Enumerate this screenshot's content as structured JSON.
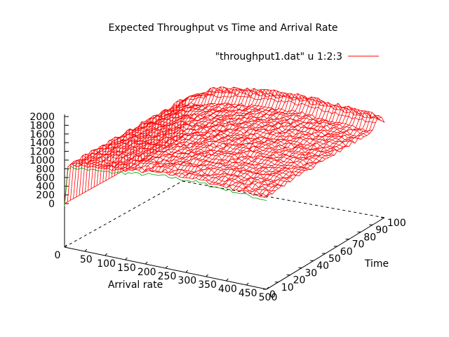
{
  "chart_data": {
    "type": "surface",
    "title": "Expected Throughput vs Time and Arrival Rate",
    "legend": {
      "label": "\"throughput1.dat\" u 1:2:3",
      "position": "top-right",
      "color": "#ff0000"
    },
    "xlabel": "Arrival rate",
    "ylabel": "Time",
    "zlabel": "",
    "xlim": [
      0,
      500
    ],
    "ylim": [
      0,
      100
    ],
    "zlim": [
      0,
      2000
    ],
    "xticks": [
      "0",
      "50",
      "100",
      "150",
      "200",
      "250",
      "300",
      "350",
      "400",
      "450",
      "500"
    ],
    "yticks": [
      "0",
      "10",
      "20",
      "30",
      "40",
      "50",
      "60",
      "70",
      "80",
      "90",
      "100"
    ],
    "zticks": [
      "0",
      "200",
      "400",
      "600",
      "800",
      "1000",
      "1200",
      "1400",
      "1600",
      "1800",
      "2000"
    ],
    "grid": false,
    "surface_colors": {
      "top": "#ff0000",
      "bottom": "#00a000"
    },
    "profile": {
      "x": [
        0,
        5,
        10,
        25,
        50,
        75,
        100,
        125,
        150,
        175,
        200,
        225,
        250,
        275,
        300,
        325,
        350,
        375,
        400,
        425,
        450,
        475,
        500
      ],
      "throughput": [
        0,
        900,
        910,
        960,
        1010,
        1050,
        1090,
        1130,
        1170,
        1200,
        1230,
        1260,
        1280,
        1290,
        1300,
        1300,
        1290,
        1280,
        1270,
        1260,
        1240,
        1230,
        1220
      ]
    },
    "time_modulation": {
      "y": [
        0,
        10,
        20,
        30,
        40,
        50,
        60,
        70,
        80,
        90,
        95,
        100
      ],
      "delta": [
        -110,
        -60,
        -30,
        -10,
        0,
        10,
        20,
        30,
        40,
        40,
        330,
        120
      ]
    }
  }
}
